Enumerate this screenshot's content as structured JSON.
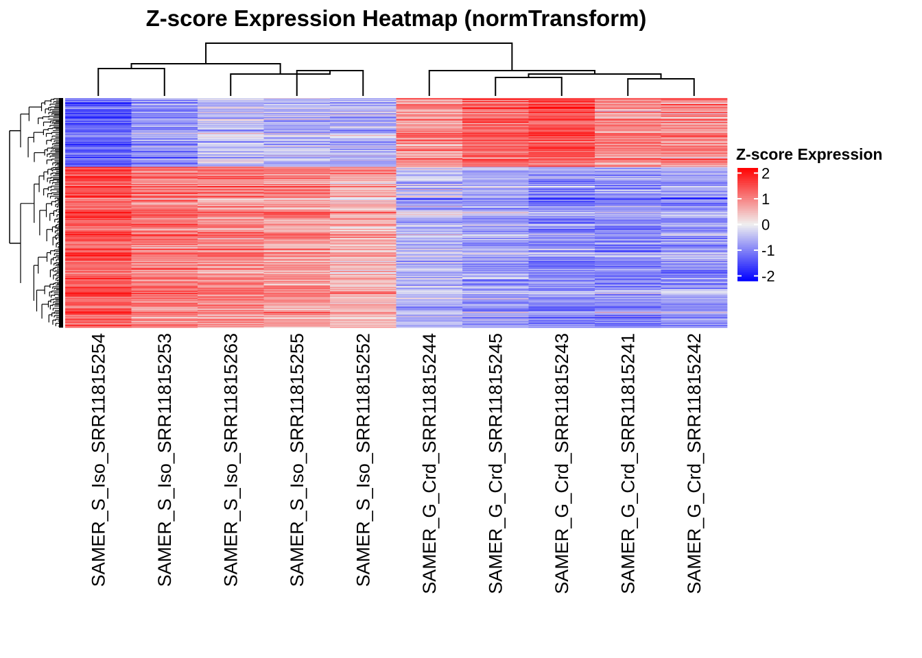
{
  "chart_data": {
    "type": "heatmap",
    "title": "Z-score Expression Heatmap (normTransform)",
    "columns": [
      "SAMER_S_Iso_SRR11815254",
      "SAMER_S_Iso_SRR11815253",
      "SAMER_S_Iso_SRR11815263",
      "SAMER_S_Iso_SRR11815255",
      "SAMER_S_Iso_SRR11815252",
      "SAMER_G_Crd_SRR11815244",
      "SAMER_G_Crd_SRR11815245",
      "SAMER_G_Crd_SRR11815243",
      "SAMER_G_Crd_SRR11815241",
      "SAMER_G_Crd_SRR11815242"
    ],
    "row_clusters": [
      {
        "name": "upper",
        "row_fraction": 0.3,
        "mean_z": [
          -1.3,
          -0.8,
          -0.4,
          -0.5,
          -0.6,
          0.9,
          1.3,
          1.5,
          0.9,
          1.0
        ]
      },
      {
        "name": "lower",
        "row_fraction": 0.7,
        "mean_z": [
          1.4,
          1.1,
          1.0,
          0.9,
          0.6,
          -0.5,
          -0.7,
          -0.9,
          -0.9,
          -0.8
        ]
      }
    ],
    "n_rows_drawn": 340,
    "legend": {
      "title": "Z-score Expression",
      "ticks": [
        "2",
        "1",
        "0",
        "-1",
        "-2"
      ],
      "tick_values": [
        2,
        1,
        0,
        -1,
        -2
      ],
      "range": [
        -2.2,
        2.2
      ],
      "colors": {
        "low": "#0000ff",
        "mid": "#f0f0f0",
        "high": "#ff0000"
      }
    },
    "column_dendrogram": {
      "order_label": "two clusters: S_Iso (5) and G_Crd (5)"
    }
  }
}
